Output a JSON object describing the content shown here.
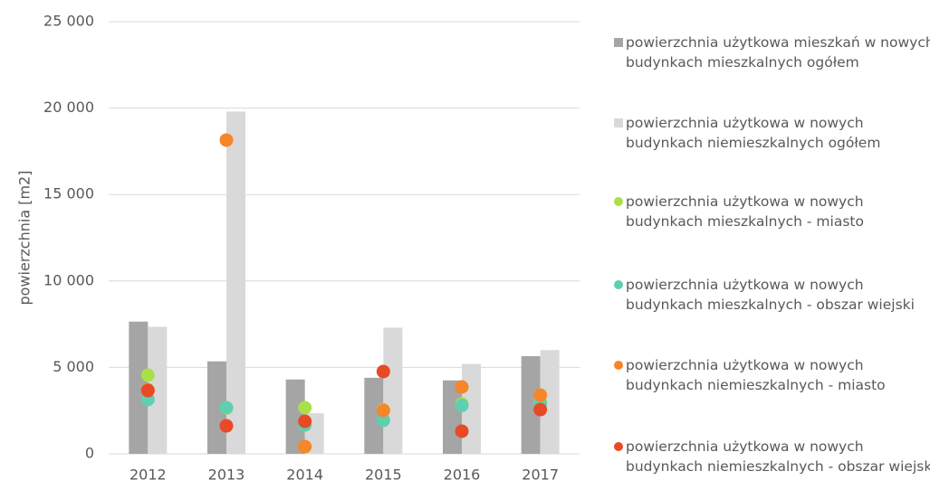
{
  "chart_data": {
    "type": "bar_scatter",
    "y_label": "powierzchnia [m2]",
    "categories": [
      "2012",
      "2013",
      "2014",
      "2015",
      "2016",
      "2017"
    ],
    "ylim": [
      0,
      25000
    ],
    "yticks": [
      0,
      {
        "value": 5000,
        "label": "5 000"
      },
      {
        "value": 10000,
        "label": "10 000"
      },
      {
        "value": 15000,
        "label": "15 000"
      },
      {
        "value": 20000,
        "label": "20 000"
      },
      {
        "value": 25000,
        "label": "25 000"
      }
    ],
    "grid": true,
    "series": [
      {
        "name": "powierzchnia użytkowa mieszkań w nowych budynkach mieszkalnych ogółem",
        "kind": "bar",
        "color": "#a5a5a5",
        "values": [
          7650,
          5350,
          4300,
          4400,
          4250,
          5650
        ]
      },
      {
        "name": "powierzchnia użytkowa w nowych budynkach niemieszkalnych ogółem",
        "kind": "bar",
        "color": "#d9d9d9",
        "values": [
          7350,
          19800,
          2350,
          7300,
          5200,
          6000
        ]
      },
      {
        "name": "powierzchnia użytkowa w nowych budynkach mieszkalnych - miasto",
        "kind": "dot",
        "color": "#a9e04a",
        "values": [
          4550,
          2650,
          2670,
          2550,
          2880,
          3000
        ]
      },
      {
        "name": "powierzchnia użytkowa w nowych budynkach mieszkalnych - obszar wiejski",
        "kind": "dot",
        "color": "#5fcfb0",
        "values": [
          3140,
          2670,
          1670,
          1940,
          2800,
          2900
        ]
      },
      {
        "name": "powierzchnia użytkowa w nowych budynkach niemieszkalnych - miasto",
        "kind": "dot",
        "color": "#f5862a",
        "values": [
          3700,
          18150,
          420,
          2510,
          3870,
          3400
        ]
      },
      {
        "name": "powierzchnia użytkowa w nowych budynkach niemieszkalnych - obszar wiejski",
        "kind": "dot",
        "color": "#e84a26",
        "values": [
          3660,
          1620,
          1880,
          4760,
          1310,
          2560
        ]
      }
    ]
  }
}
